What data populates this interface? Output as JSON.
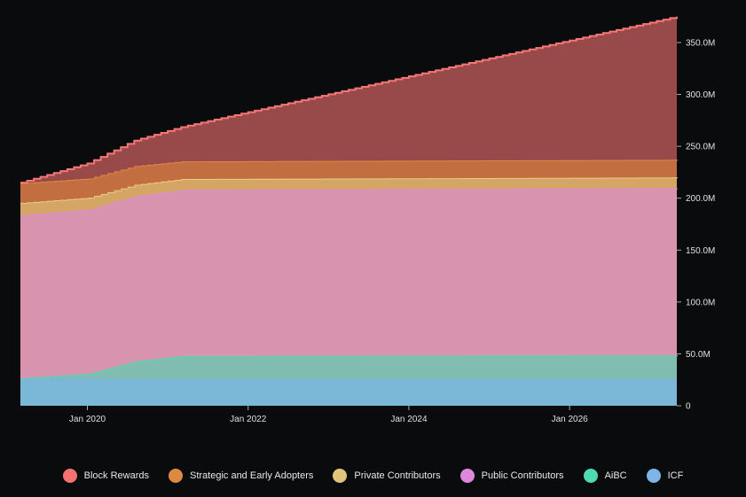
{
  "chart_data": {
    "type": "area",
    "stacked": true,
    "title": "",
    "xlabel": "",
    "ylabel": "",
    "x_range": [
      "2019-03",
      "2027-05"
    ],
    "ylim": [
      0,
      375000000
    ],
    "x_ticks": [
      "Jan 2020",
      "Jan 2022",
      "Jan 2024",
      "Jan 2026"
    ],
    "y_ticks": [
      "0",
      "50.0M",
      "100.0M",
      "150.0M",
      "200.0M",
      "250.0M",
      "300.0M",
      "350.0M"
    ],
    "y_tick_values": [
      0,
      50,
      100,
      150,
      200,
      250,
      300,
      350
    ],
    "units": "millions",
    "legend_position": "bottom",
    "dates": [
      "2019-03",
      "2020-01",
      "2020-08",
      "2021-03",
      "2027-05"
    ],
    "series": [
      {
        "name": "ICF",
        "line": "#7eb4e6",
        "fill": "#7bb7d6",
        "values": [
          26,
          26,
          26,
          26,
          26
        ]
      },
      {
        "name": "AiBC",
        "line": "#4fdab2",
        "fill": "#80bcb0",
        "values": [
          0.5,
          5,
          17,
          22,
          22.5
        ]
      },
      {
        "name": "Public Contributors",
        "line": "#dd88dd",
        "fill": "#d894ae",
        "values": [
          157,
          158,
          159,
          160,
          161
        ]
      },
      {
        "name": "Private Contributors",
        "line": "#e6cd86",
        "fill": "#d5a565",
        "values": [
          12,
          11.5,
          11,
          10.5,
          10.5
        ]
      },
      {
        "name": "Strategic and Early Adopters",
        "line": "#de8844",
        "fill": "#c36e40",
        "values": [
          19,
          18.5,
          18,
          17,
          17
        ]
      },
      {
        "name": "Block Rewards",
        "line": "#f87777",
        "fill": "#984a4b",
        "values": [
          0.5,
          14.5,
          24.5,
          33,
          138
        ]
      }
    ]
  },
  "legend": [
    {
      "label": "Block Rewards",
      "color": "#f87171"
    },
    {
      "label": "Strategic and Early Adopters",
      "color": "#dd8a40"
    },
    {
      "label": "Private Contributors",
      "color": "#e1c47c"
    },
    {
      "label": "Public Contributors",
      "color": "#dd88dd"
    },
    {
      "label": "AiBC",
      "color": "#4fd9b2"
    },
    {
      "label": "ICF",
      "color": "#7eb4e6"
    }
  ]
}
